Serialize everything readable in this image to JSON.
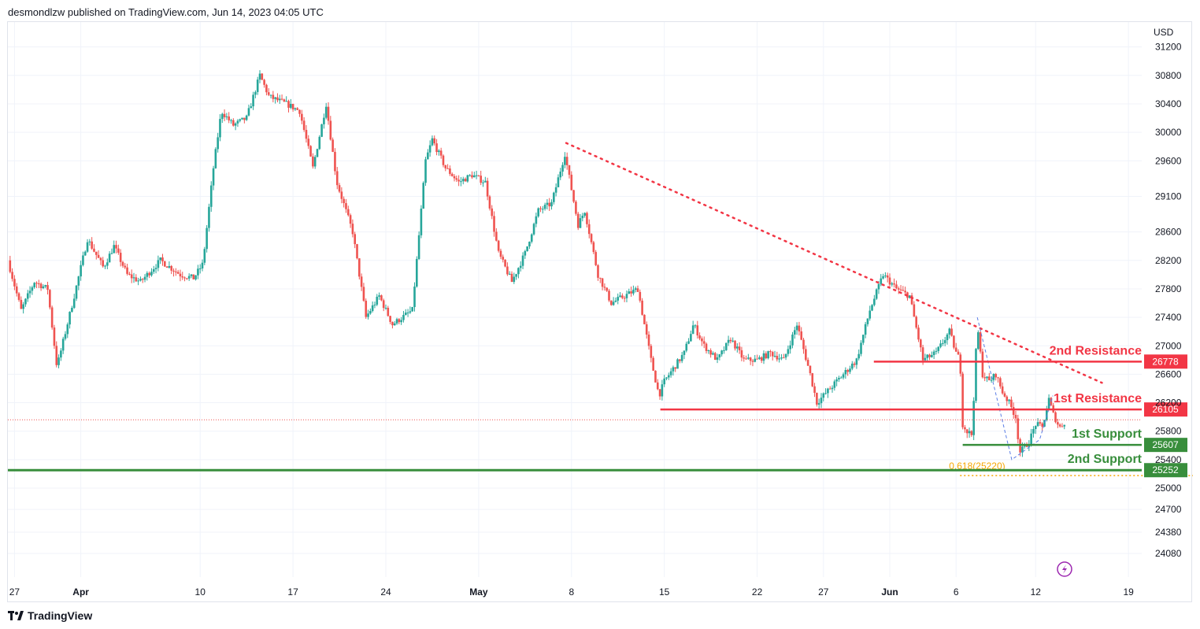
{
  "header": {
    "published": "desmondlzw published on TradingView.com, Jun 14, 2023 04:05 UTC"
  },
  "footer": {
    "brand": "TradingView"
  },
  "colors": {
    "up": "#26a69a",
    "down": "#ef5350",
    "resistance": "#f23645",
    "support": "#388e3c",
    "fib": "#f7a600",
    "trend": "#f23645",
    "wave": "#5b7ee5",
    "grid": "#f0f3fa"
  },
  "chart_data": {
    "type": "candlestick",
    "symbol_currency": "USD",
    "ylim": [
      23750,
      31550
    ],
    "y_ticks": [
      31200,
      30800,
      30400,
      30000,
      29600,
      29100,
      28600,
      28200,
      27800,
      27400,
      27000,
      26600,
      26200,
      25800,
      25400,
      25000,
      24700,
      24380,
      24080
    ],
    "x_ticks": [
      {
        "label": "27",
        "day": 0,
        "bold": false
      },
      {
        "label": "Apr",
        "day": 5,
        "bold": true
      },
      {
        "label": "10",
        "day": 14,
        "bold": false
      },
      {
        "label": "17",
        "day": 21,
        "bold": false
      },
      {
        "label": "24",
        "day": 28,
        "bold": false
      },
      {
        "label": "May",
        "day": 35,
        "bold": true
      },
      {
        "label": "8",
        "day": 42,
        "bold": false
      },
      {
        "label": "15",
        "day": 49,
        "bold": false
      },
      {
        "label": "22",
        "day": 56,
        "bold": false
      },
      {
        "label": "27",
        "day": 61,
        "bold": false
      },
      {
        "label": "Jun",
        "day": 66,
        "bold": true
      },
      {
        "label": "6",
        "day": 71,
        "bold": false
      },
      {
        "label": "12",
        "day": 77,
        "bold": false
      },
      {
        "label": "19",
        "day": 84,
        "bold": false
      }
    ],
    "x_range_days": [
      -0.5,
      85.0
    ],
    "price_path": [
      [
        -0.5,
        28200
      ],
      [
        0.5,
        27500
      ],
      [
        1.5,
        27900
      ],
      [
        2.5,
        27800
      ],
      [
        3.2,
        26700
      ],
      [
        4.5,
        27700
      ],
      [
        5.5,
        28500
      ],
      [
        6.7,
        28100
      ],
      [
        7.5,
        28400
      ],
      [
        8.5,
        28000
      ],
      [
        9.5,
        27900
      ],
      [
        11.0,
        28200
      ],
      [
        12.5,
        28000
      ],
      [
        13.5,
        27950
      ],
      [
        14.2,
        28150
      ],
      [
        15.0,
        29500
      ],
      [
        15.6,
        30300
      ],
      [
        16.5,
        30100
      ],
      [
        17.5,
        30200
      ],
      [
        18.5,
        30800
      ],
      [
        19.2,
        30500
      ],
      [
        20.5,
        30400
      ],
      [
        21.5,
        30300
      ],
      [
        22.5,
        29500
      ],
      [
        23.5,
        30400
      ],
      [
        24.3,
        29300
      ],
      [
        25.5,
        28600
      ],
      [
        26.5,
        27400
      ],
      [
        27.5,
        27700
      ],
      [
        28.5,
        27300
      ],
      [
        30.0,
        27500
      ],
      [
        31.0,
        29600
      ],
      [
        31.5,
        29900
      ],
      [
        32.5,
        29500
      ],
      [
        33.5,
        29300
      ],
      [
        34.5,
        29400
      ],
      [
        35.5,
        29300
      ],
      [
        36.5,
        28300
      ],
      [
        37.5,
        27900
      ],
      [
        38.5,
        28300
      ],
      [
        39.5,
        28900
      ],
      [
        40.5,
        29000
      ],
      [
        41.5,
        29700
      ],
      [
        42.5,
        28700
      ],
      [
        43.0,
        28900
      ],
      [
        44.0,
        28000
      ],
      [
        45.0,
        27600
      ],
      [
        46.0,
        27700
      ],
      [
        47.0,
        27800
      ],
      [
        48.0,
        26800
      ],
      [
        48.6,
        26300
      ],
      [
        49.0,
        26500
      ],
      [
        50.5,
        26900
      ],
      [
        51.2,
        27300
      ],
      [
        52.0,
        27000
      ],
      [
        53.0,
        26800
      ],
      [
        54.0,
        27100
      ],
      [
        55.0,
        26800
      ],
      [
        56.0,
        26800
      ],
      [
        57.0,
        26900
      ],
      [
        58.0,
        26800
      ],
      [
        59.0,
        27300
      ],
      [
        60.0,
        26600
      ],
      [
        60.5,
        26200
      ],
      [
        61.5,
        26400
      ],
      [
        62.5,
        26600
      ],
      [
        63.5,
        26800
      ],
      [
        64.5,
        27500
      ],
      [
        65.5,
        28000
      ],
      [
        66.5,
        27800
      ],
      [
        67.5,
        27700
      ],
      [
        68.5,
        26800
      ],
      [
        69.5,
        26900
      ],
      [
        70.5,
        27200
      ],
      [
        71.0,
        26900
      ],
      [
        71.3,
        26800
      ],
      [
        71.5,
        25900
      ],
      [
        71.8,
        25800
      ],
      [
        72.2,
        25750
      ],
      [
        72.6,
        27300
      ],
      [
        73.0,
        26600
      ],
      [
        73.5,
        26500
      ],
      [
        74.0,
        26600
      ],
      [
        74.5,
        26350
      ],
      [
        75.0,
        26200
      ],
      [
        75.5,
        26000
      ],
      [
        75.8,
        25500
      ],
      [
        76.5,
        25650
      ],
      [
        77.0,
        25900
      ],
      [
        77.5,
        25850
      ],
      [
        78.0,
        26250
      ],
      [
        78.3,
        26050
      ],
      [
        78.8,
        25850
      ],
      [
        79.3,
        25950
      ]
    ],
    "horizontal_lines": [
      {
        "name": "2nd Resistance",
        "price": 26778,
        "tag": "26778",
        "color": "resistance",
        "from_day": 64.8,
        "label_day": 74.4
      },
      {
        "name": "1st Resistance",
        "price": 26105,
        "tag": "26105",
        "color": "resistance",
        "from_day": 48.7,
        "label_day": 76.0
      },
      {
        "name": "1st Support",
        "price": 25607,
        "tag": "25607",
        "color": "support",
        "from_day": 71.5,
        "label_day": 76.6
      },
      {
        "name": "2nd Support",
        "price": 25252,
        "tag": "25252",
        "color": "support",
        "from_day": -0.5,
        "label_day": 76.2
      }
    ],
    "current_price": 25960,
    "fib_label": "0.618(25220)",
    "fib_level": 25220,
    "fib_range_days": [
      71.3,
      80.5
    ],
    "trendline": [
      [
        41.6,
        29850
      ],
      [
        82.0,
        26480
      ]
    ],
    "wave": [
      [
        72.6,
        27400
      ],
      [
        75.2,
        25400
      ],
      [
        77.3,
        25680
      ],
      [
        78.3,
        26300
      ]
    ],
    "sections": [
      {
        "label": "2nd Resistance",
        "color": "resistance"
      },
      {
        "label": "1st Resistance",
        "color": "resistance"
      },
      {
        "label": "1st Support",
        "color": "support"
      },
      {
        "label": "2nd Support",
        "color": "support"
      }
    ]
  }
}
